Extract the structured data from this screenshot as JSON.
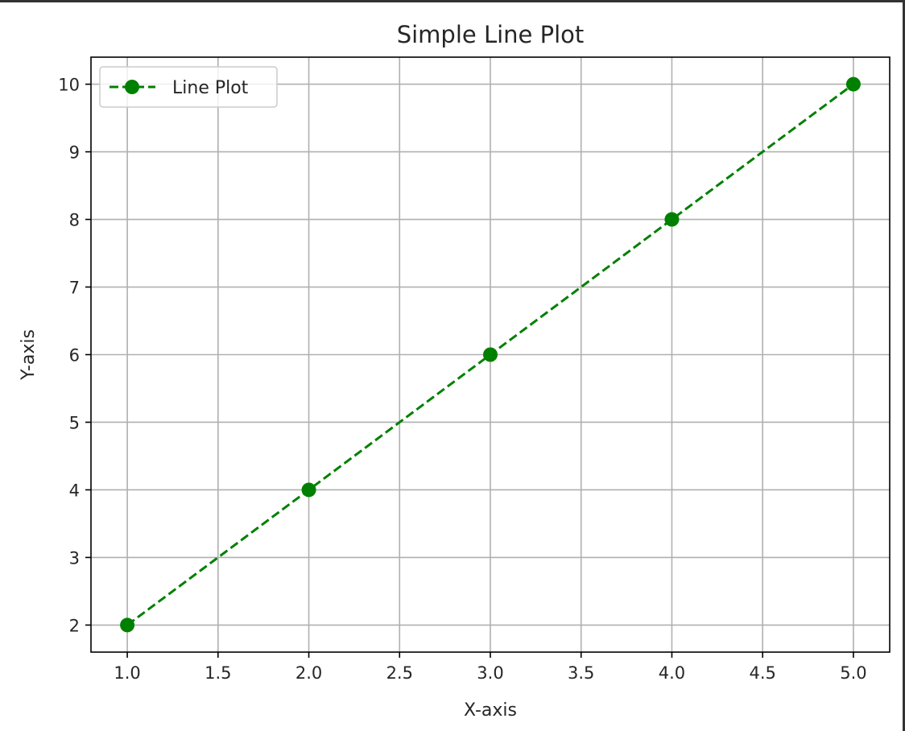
{
  "chart_data": {
    "type": "line",
    "title": "Simple Line Plot",
    "xlabel": "X-axis",
    "ylabel": "Y-axis",
    "xlim": [
      0.8,
      5.2
    ],
    "ylim": [
      1.6,
      10.4
    ],
    "x_ticks": [
      1.0,
      1.5,
      2.0,
      2.5,
      3.0,
      3.5,
      4.0,
      4.5,
      5.0
    ],
    "x_tick_labels": [
      "1.0",
      "1.5",
      "2.0",
      "2.5",
      "3.0",
      "3.5",
      "4.0",
      "4.5",
      "5.0"
    ],
    "y_ticks": [
      2,
      3,
      4,
      5,
      6,
      7,
      8,
      9,
      10
    ],
    "y_tick_labels": [
      "2",
      "3",
      "4",
      "5",
      "6",
      "7",
      "8",
      "9",
      "10"
    ],
    "grid": true,
    "legend_position": "top-left",
    "series": [
      {
        "name": "Line Plot",
        "x": [
          1,
          2,
          3,
          4,
          5
        ],
        "y": [
          2,
          4,
          6,
          8,
          10
        ],
        "color": "#008000",
        "line_style": "dashed",
        "marker": "circle"
      }
    ]
  }
}
